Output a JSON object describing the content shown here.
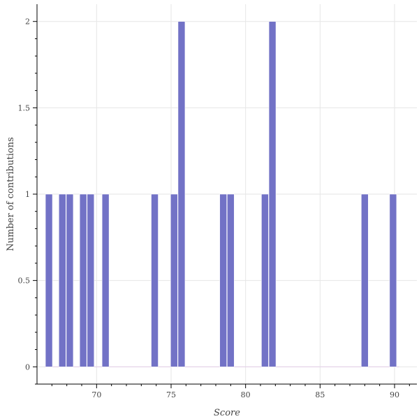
{
  "chart_data": {
    "type": "bar",
    "title": "",
    "xlabel": "Score",
    "ylabel": "Number of contributions",
    "xlim": [
      66,
      91.5
    ],
    "ylim": [
      -0.1,
      2.1
    ],
    "x_ticks": [
      70,
      75,
      80,
      85,
      90
    ],
    "y_ticks": [
      0,
      0.5,
      1,
      1.5,
      2
    ],
    "y_tick_labels": [
      "0",
      "0.5",
      "1",
      "1.5",
      "2"
    ],
    "x_tick_labels": [
      "70",
      "75",
      "80",
      "85",
      "90"
    ],
    "bin_width": 0.47,
    "bins": [
      {
        "x": 66.8,
        "count": 1
      },
      {
        "x": 67.7,
        "count": 1
      },
      {
        "x": 68.2,
        "count": 1
      },
      {
        "x": 69.1,
        "count": 1
      },
      {
        "x": 69.6,
        "count": 1
      },
      {
        "x": 70.6,
        "count": 1
      },
      {
        "x": 73.9,
        "count": 1
      },
      {
        "x": 75.2,
        "count": 1
      },
      {
        "x": 75.7,
        "count": 2
      },
      {
        "x": 78.5,
        "count": 1
      },
      {
        "x": 79.0,
        "count": 1
      },
      {
        "x": 81.3,
        "count": 1
      },
      {
        "x": 81.8,
        "count": 2
      },
      {
        "x": 88.0,
        "count": 1
      },
      {
        "x": 89.9,
        "count": 1
      }
    ],
    "bar_color": "#7272c6",
    "grid": true
  }
}
